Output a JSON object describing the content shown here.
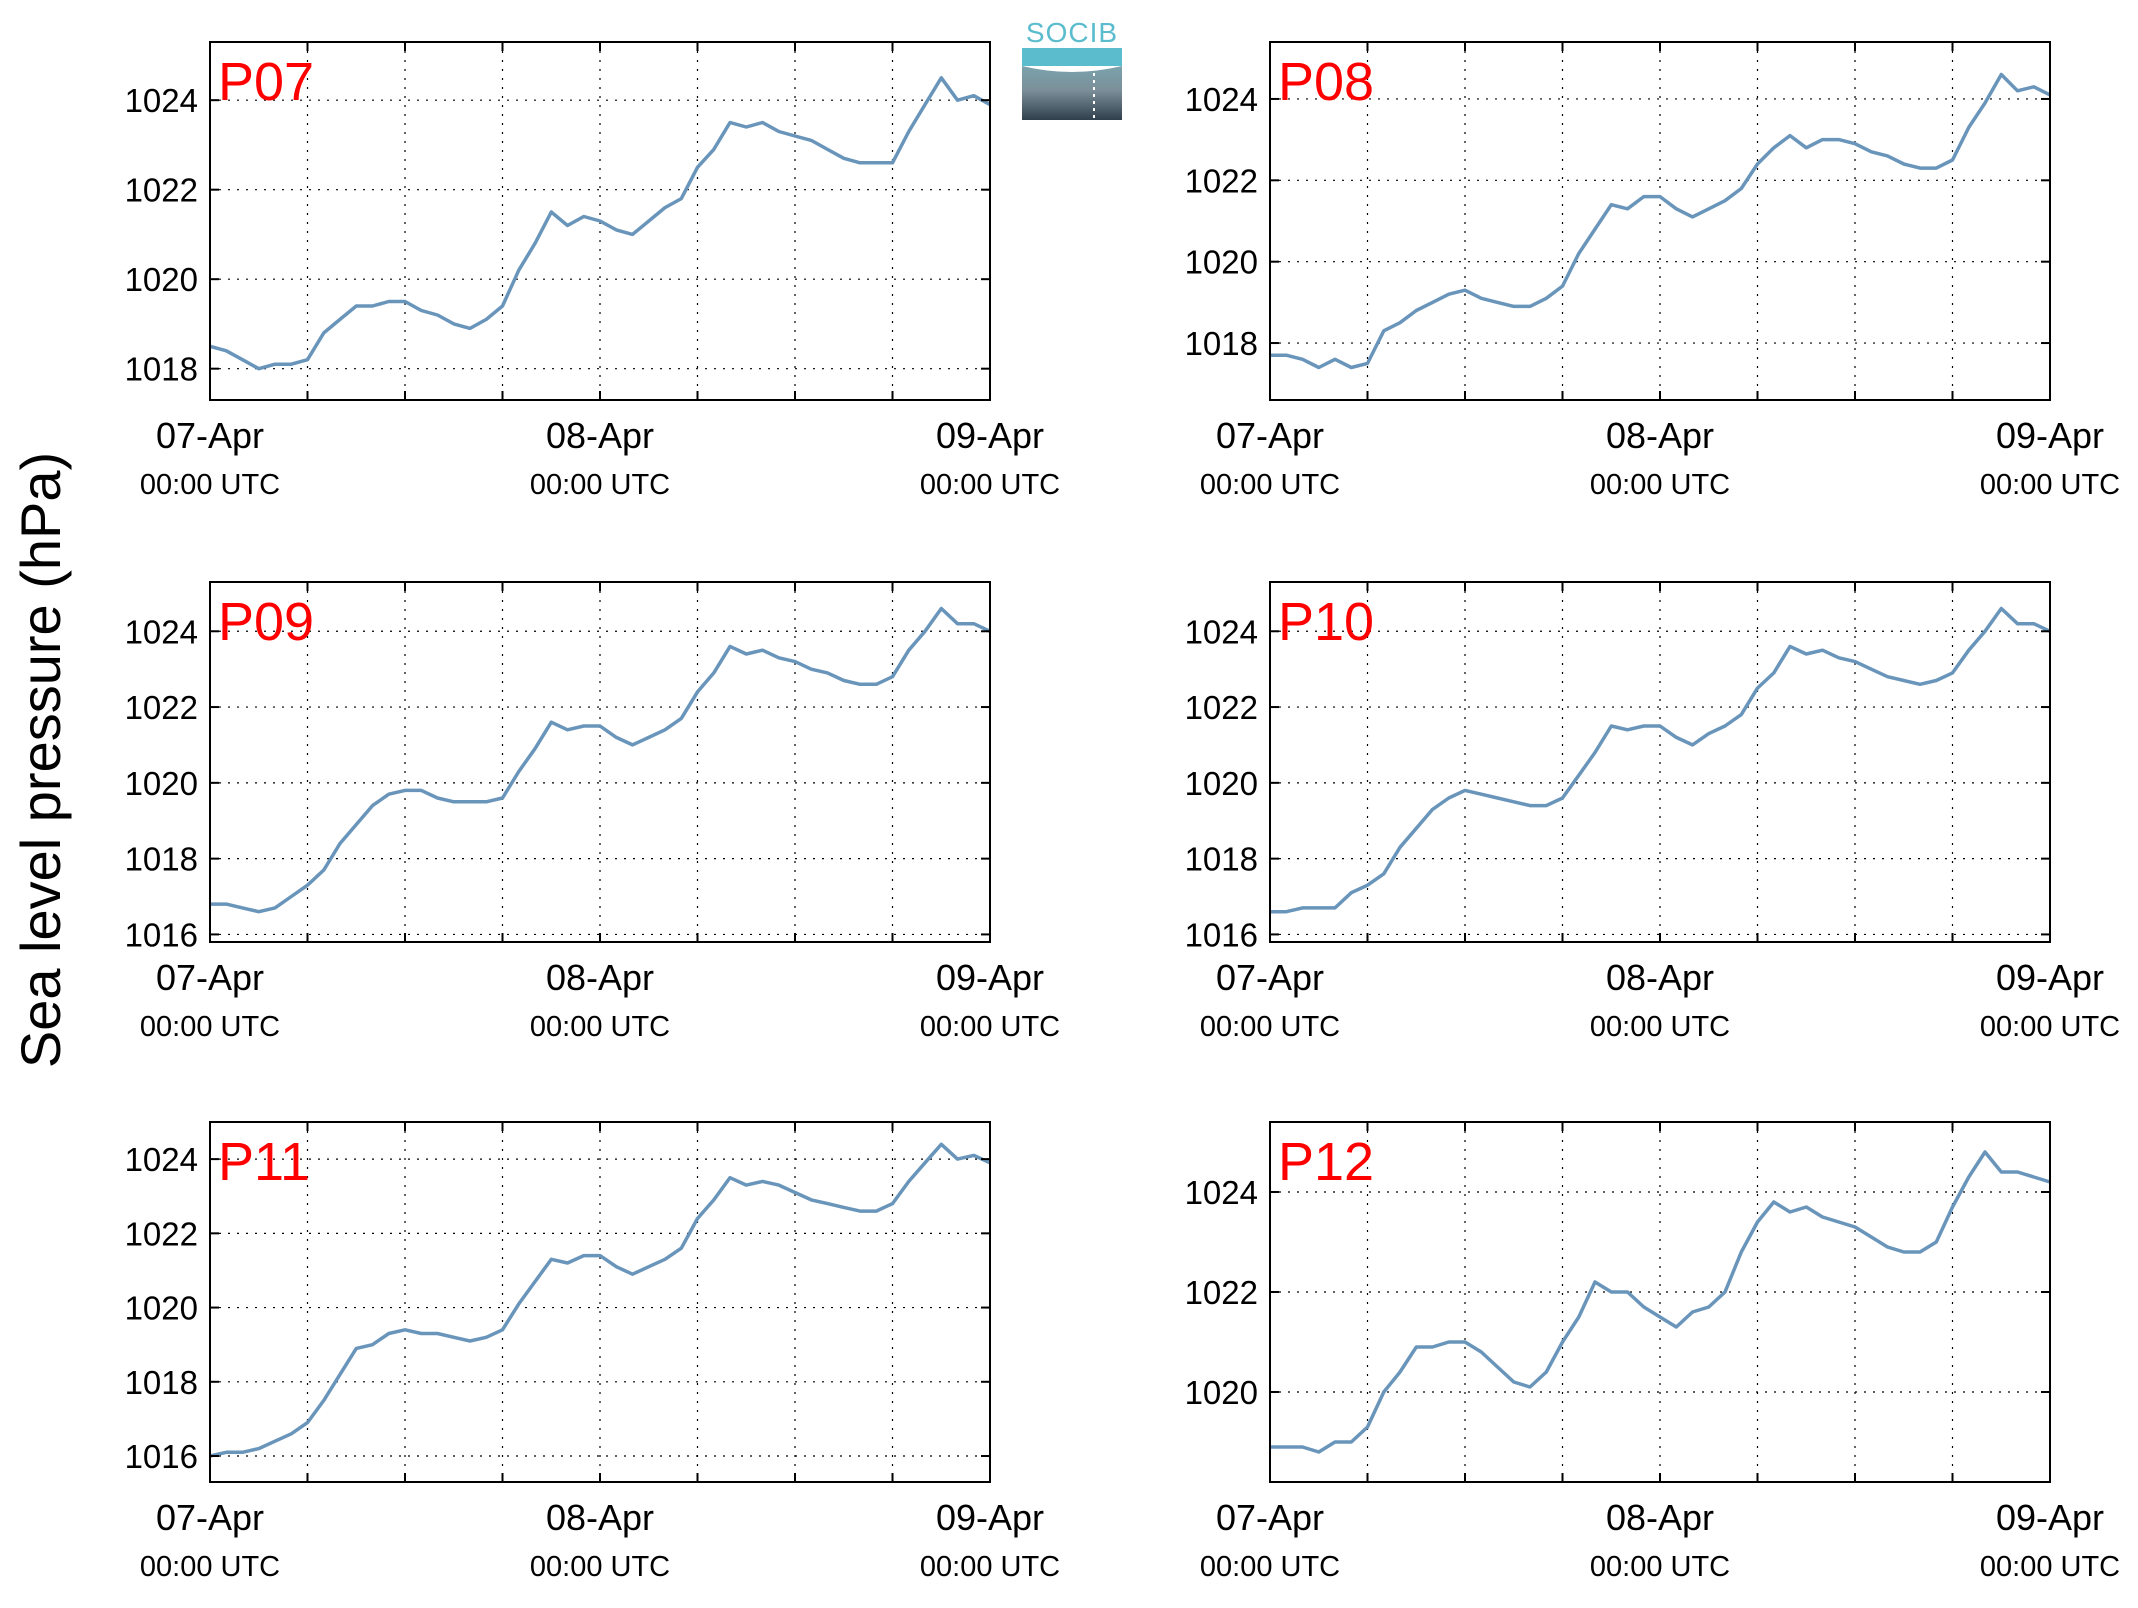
{
  "figure": {
    "ylabel": "Sea level pressure (hPa)",
    "logo_text": "SOCIB",
    "accent_red": "#ff0000",
    "line_color": "#6a95bb",
    "logo_color": "#5bbccd"
  },
  "chart_data": [
    {
      "type": "line",
      "title": "P07",
      "x_tick_dates": [
        "07-Apr",
        "08-Apr",
        "09-Apr"
      ],
      "x_tick_times": [
        "00:00 UTC",
        "00:00 UTC",
        "00:00 UTC"
      ],
      "x_unit": "hours since 07-Apr 00:00 UTC",
      "xlim": [
        0,
        48
      ],
      "ylim": [
        1017.3,
        1025.3
      ],
      "yticks": [
        1018,
        1020,
        1022,
        1024
      ],
      "grid": true,
      "series": [
        {
          "x": [
            0,
            1,
            2,
            3,
            4,
            5,
            6,
            7,
            8,
            9,
            10,
            11,
            12,
            13,
            14,
            15,
            16,
            17,
            18,
            19,
            20,
            21,
            22,
            23,
            24,
            25,
            26,
            27,
            28,
            29,
            30,
            31,
            32,
            33,
            34,
            35,
            36,
            37,
            38,
            39,
            40,
            41,
            42,
            43,
            44,
            45,
            46,
            47,
            48
          ],
          "values": [
            1018.5,
            1018.4,
            1018.2,
            1018.0,
            1018.1,
            1018.1,
            1018.2,
            1018.8,
            1019.1,
            1019.4,
            1019.4,
            1019.5,
            1019.5,
            1019.3,
            1019.2,
            1019.0,
            1018.9,
            1019.1,
            1019.4,
            1020.2,
            1020.8,
            1021.5,
            1021.2,
            1021.4,
            1021.3,
            1021.1,
            1021.0,
            1021.3,
            1021.6,
            1021.8,
            1022.5,
            1022.9,
            1023.5,
            1023.4,
            1023.5,
            1023.3,
            1023.2,
            1023.1,
            1022.9,
            1022.7,
            1022.6,
            1022.6,
            1022.6,
            1023.3,
            1023.9,
            1024.5,
            1024.0,
            1024.1,
            1023.9
          ]
        }
      ]
    },
    {
      "type": "line",
      "title": "P08",
      "x_tick_dates": [
        "07-Apr",
        "08-Apr",
        "09-Apr"
      ],
      "x_tick_times": [
        "00:00 UTC",
        "00:00 UTC",
        "00:00 UTC"
      ],
      "x_unit": "hours since 07-Apr 00:00 UTC",
      "xlim": [
        0,
        48
      ],
      "ylim": [
        1016.6,
        1025.4
      ],
      "yticks": [
        1018,
        1020,
        1022,
        1024
      ],
      "grid": true,
      "series": [
        {
          "x": [
            0,
            1,
            2,
            3,
            4,
            5,
            6,
            7,
            8,
            9,
            10,
            11,
            12,
            13,
            14,
            15,
            16,
            17,
            18,
            19,
            20,
            21,
            22,
            23,
            24,
            25,
            26,
            27,
            28,
            29,
            30,
            31,
            32,
            33,
            34,
            35,
            36,
            37,
            38,
            39,
            40,
            41,
            42,
            43,
            44,
            45,
            46,
            47,
            48
          ],
          "values": [
            1017.7,
            1017.7,
            1017.6,
            1017.4,
            1017.6,
            1017.4,
            1017.5,
            1018.3,
            1018.5,
            1018.8,
            1019.0,
            1019.2,
            1019.3,
            1019.1,
            1019.0,
            1018.9,
            1018.9,
            1019.1,
            1019.4,
            1020.2,
            1020.8,
            1021.4,
            1021.3,
            1021.6,
            1021.6,
            1021.3,
            1021.1,
            1021.3,
            1021.5,
            1021.8,
            1022.4,
            1022.8,
            1023.1,
            1022.8,
            1023.0,
            1023.0,
            1022.9,
            1022.7,
            1022.6,
            1022.4,
            1022.3,
            1022.3,
            1022.5,
            1023.3,
            1023.9,
            1024.6,
            1024.2,
            1024.3,
            1024.1
          ]
        }
      ]
    },
    {
      "type": "line",
      "title": "P09",
      "x_tick_dates": [
        "07-Apr",
        "08-Apr",
        "09-Apr"
      ],
      "x_tick_times": [
        "00:00 UTC",
        "00:00 UTC",
        "00:00 UTC"
      ],
      "x_unit": "hours since 07-Apr 00:00 UTC",
      "xlim": [
        0,
        48
      ],
      "ylim": [
        1015.8,
        1025.3
      ],
      "yticks": [
        1016,
        1018,
        1020,
        1022,
        1024
      ],
      "grid": true,
      "series": [
        {
          "x": [
            0,
            1,
            2,
            3,
            4,
            5,
            6,
            7,
            8,
            9,
            10,
            11,
            12,
            13,
            14,
            15,
            16,
            17,
            18,
            19,
            20,
            21,
            22,
            23,
            24,
            25,
            26,
            27,
            28,
            29,
            30,
            31,
            32,
            33,
            34,
            35,
            36,
            37,
            38,
            39,
            40,
            41,
            42,
            43,
            44,
            45,
            46,
            47,
            48
          ],
          "values": [
            1016.8,
            1016.8,
            1016.7,
            1016.6,
            1016.7,
            1017.0,
            1017.3,
            1017.7,
            1018.4,
            1018.9,
            1019.4,
            1019.7,
            1019.8,
            1019.8,
            1019.6,
            1019.5,
            1019.5,
            1019.5,
            1019.6,
            1020.3,
            1020.9,
            1021.6,
            1021.4,
            1021.5,
            1021.5,
            1021.2,
            1021.0,
            1021.2,
            1021.4,
            1021.7,
            1022.4,
            1022.9,
            1023.6,
            1023.4,
            1023.5,
            1023.3,
            1023.2,
            1023.0,
            1022.9,
            1022.7,
            1022.6,
            1022.6,
            1022.8,
            1023.5,
            1024.0,
            1024.6,
            1024.2,
            1024.2,
            1024.0
          ]
        }
      ]
    },
    {
      "type": "line",
      "title": "P10",
      "x_tick_dates": [
        "07-Apr",
        "08-Apr",
        "09-Apr"
      ],
      "x_tick_times": [
        "00:00 UTC",
        "00:00 UTC",
        "00:00 UTC"
      ],
      "x_unit": "hours since 07-Apr 00:00 UTC",
      "xlim": [
        0,
        48
      ],
      "ylim": [
        1015.8,
        1025.3
      ],
      "yticks": [
        1016,
        1018,
        1020,
        1022,
        1024
      ],
      "grid": true,
      "series": [
        {
          "x": [
            0,
            1,
            2,
            3,
            4,
            5,
            6,
            7,
            8,
            9,
            10,
            11,
            12,
            13,
            14,
            15,
            16,
            17,
            18,
            19,
            20,
            21,
            22,
            23,
            24,
            25,
            26,
            27,
            28,
            29,
            30,
            31,
            32,
            33,
            34,
            35,
            36,
            37,
            38,
            39,
            40,
            41,
            42,
            43,
            44,
            45,
            46,
            47,
            48
          ],
          "values": [
            1016.6,
            1016.6,
            1016.7,
            1016.7,
            1016.7,
            1017.1,
            1017.3,
            1017.6,
            1018.3,
            1018.8,
            1019.3,
            1019.6,
            1019.8,
            1019.7,
            1019.6,
            1019.5,
            1019.4,
            1019.4,
            1019.6,
            1020.2,
            1020.8,
            1021.5,
            1021.4,
            1021.5,
            1021.5,
            1021.2,
            1021.0,
            1021.3,
            1021.5,
            1021.8,
            1022.5,
            1022.9,
            1023.6,
            1023.4,
            1023.5,
            1023.3,
            1023.2,
            1023.0,
            1022.8,
            1022.7,
            1022.6,
            1022.7,
            1022.9,
            1023.5,
            1024.0,
            1024.6,
            1024.2,
            1024.2,
            1024.0
          ]
        }
      ]
    },
    {
      "type": "line",
      "title": "P11",
      "x_tick_dates": [
        "07-Apr",
        "08-Apr",
        "09-Apr"
      ],
      "x_tick_times": [
        "00:00 UTC",
        "00:00 UTC",
        "00:00 UTC"
      ],
      "x_unit": "hours since 07-Apr 00:00 UTC",
      "xlim": [
        0,
        48
      ],
      "ylim": [
        1015.3,
        1025.0
      ],
      "yticks": [
        1016,
        1018,
        1020,
        1022,
        1024
      ],
      "grid": true,
      "series": [
        {
          "x": [
            0,
            1,
            2,
            3,
            4,
            5,
            6,
            7,
            8,
            9,
            10,
            11,
            12,
            13,
            14,
            15,
            16,
            17,
            18,
            19,
            20,
            21,
            22,
            23,
            24,
            25,
            26,
            27,
            28,
            29,
            30,
            31,
            32,
            33,
            34,
            35,
            36,
            37,
            38,
            39,
            40,
            41,
            42,
            43,
            44,
            45,
            46,
            47,
            48
          ],
          "values": [
            1016.0,
            1016.1,
            1016.1,
            1016.2,
            1016.4,
            1016.6,
            1016.9,
            1017.5,
            1018.2,
            1018.9,
            1019.0,
            1019.3,
            1019.4,
            1019.3,
            1019.3,
            1019.2,
            1019.1,
            1019.2,
            1019.4,
            1020.1,
            1020.7,
            1021.3,
            1021.2,
            1021.4,
            1021.4,
            1021.1,
            1020.9,
            1021.1,
            1021.3,
            1021.6,
            1022.4,
            1022.9,
            1023.5,
            1023.3,
            1023.4,
            1023.3,
            1023.1,
            1022.9,
            1022.8,
            1022.7,
            1022.6,
            1022.6,
            1022.8,
            1023.4,
            1023.9,
            1024.4,
            1024.0,
            1024.1,
            1023.9
          ]
        }
      ]
    },
    {
      "type": "line",
      "title": "P12",
      "x_tick_dates": [
        "07-Apr",
        "08-Apr",
        "09-Apr"
      ],
      "x_tick_times": [
        "00:00 UTC",
        "00:00 UTC",
        "00:00 UTC"
      ],
      "x_unit": "hours since 07-Apr 00:00 UTC",
      "xlim": [
        0,
        48
      ],
      "ylim": [
        1018.2,
        1025.4
      ],
      "yticks": [
        1020,
        1022,
        1024
      ],
      "grid": true,
      "series": [
        {
          "x": [
            0,
            1,
            2,
            3,
            4,
            5,
            6,
            7,
            8,
            9,
            10,
            11,
            12,
            13,
            14,
            15,
            16,
            17,
            18,
            19,
            20,
            21,
            22,
            23,
            24,
            25,
            26,
            27,
            28,
            29,
            30,
            31,
            32,
            33,
            34,
            35,
            36,
            37,
            38,
            39,
            40,
            41,
            42,
            43,
            44,
            45,
            46,
            47,
            48
          ],
          "values": [
            1018.9,
            1018.9,
            1018.9,
            1018.8,
            1019.0,
            1019.0,
            1019.3,
            1020.0,
            1020.4,
            1020.9,
            1020.9,
            1021.0,
            1021.0,
            1020.8,
            1020.5,
            1020.2,
            1020.1,
            1020.4,
            1021.0,
            1021.5,
            1022.2,
            1022.0,
            1022.0,
            1021.7,
            1021.5,
            1021.3,
            1021.6,
            1021.7,
            1022.0,
            1022.8,
            1023.4,
            1023.8,
            1023.6,
            1023.7,
            1023.5,
            1023.4,
            1023.3,
            1023.1,
            1022.9,
            1022.8,
            1022.8,
            1023.0,
            1023.7,
            1024.3,
            1024.8,
            1024.4,
            1024.4,
            1024.3,
            1024.2
          ]
        }
      ]
    }
  ]
}
